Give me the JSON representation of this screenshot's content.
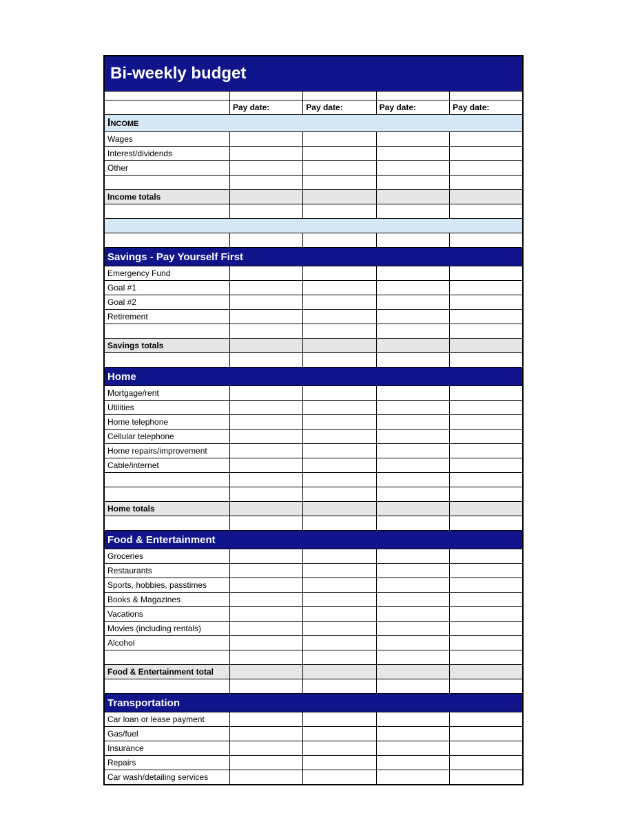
{
  "colors": {
    "header_blue": "#10158c",
    "light_blue": "#d6e8f6",
    "totals_grey": "#e6e6e6",
    "border": "#000000",
    "white": "#ffffff"
  },
  "title": "Bi-weekly  budget",
  "pay_headers": [
    "Pay date:",
    "Pay date:",
    "Pay date:",
    "Pay date:"
  ],
  "sections": {
    "income": {
      "header": "Income",
      "rows": [
        "Wages",
        "Interest/dividends",
        "Other"
      ],
      "totals_label": "Income totals"
    },
    "savings": {
      "header": "Savings - Pay Yourself First",
      "rows": [
        "Emergency Fund",
        "Goal #1",
        "Goal #2",
        "Retirement"
      ],
      "totals_label": "Savings totals"
    },
    "home": {
      "header": "Home",
      "rows": [
        "Mortgage/rent",
        "Utilities",
        "Home telephone",
        "Cellular telephone",
        "Home repairs/improvement",
        "Cable/internet"
      ],
      "totals_label": "Home totals"
    },
    "food": {
      "header": "Food & Entertainment",
      "rows": [
        "Groceries",
        "Restaurants",
        "Sports, hobbies, passtimes",
        "Books & Magazines",
        "Vacations",
        "Movies (including rentals)",
        "Alcohol"
      ],
      "totals_label": "Food & Entertainment total"
    },
    "transport": {
      "header": "Transportation",
      "rows": [
        "Car loan or lease payment",
        "Gas/fuel",
        "Insurance",
        "Repairs",
        "Car wash/detailing services"
      ]
    }
  }
}
